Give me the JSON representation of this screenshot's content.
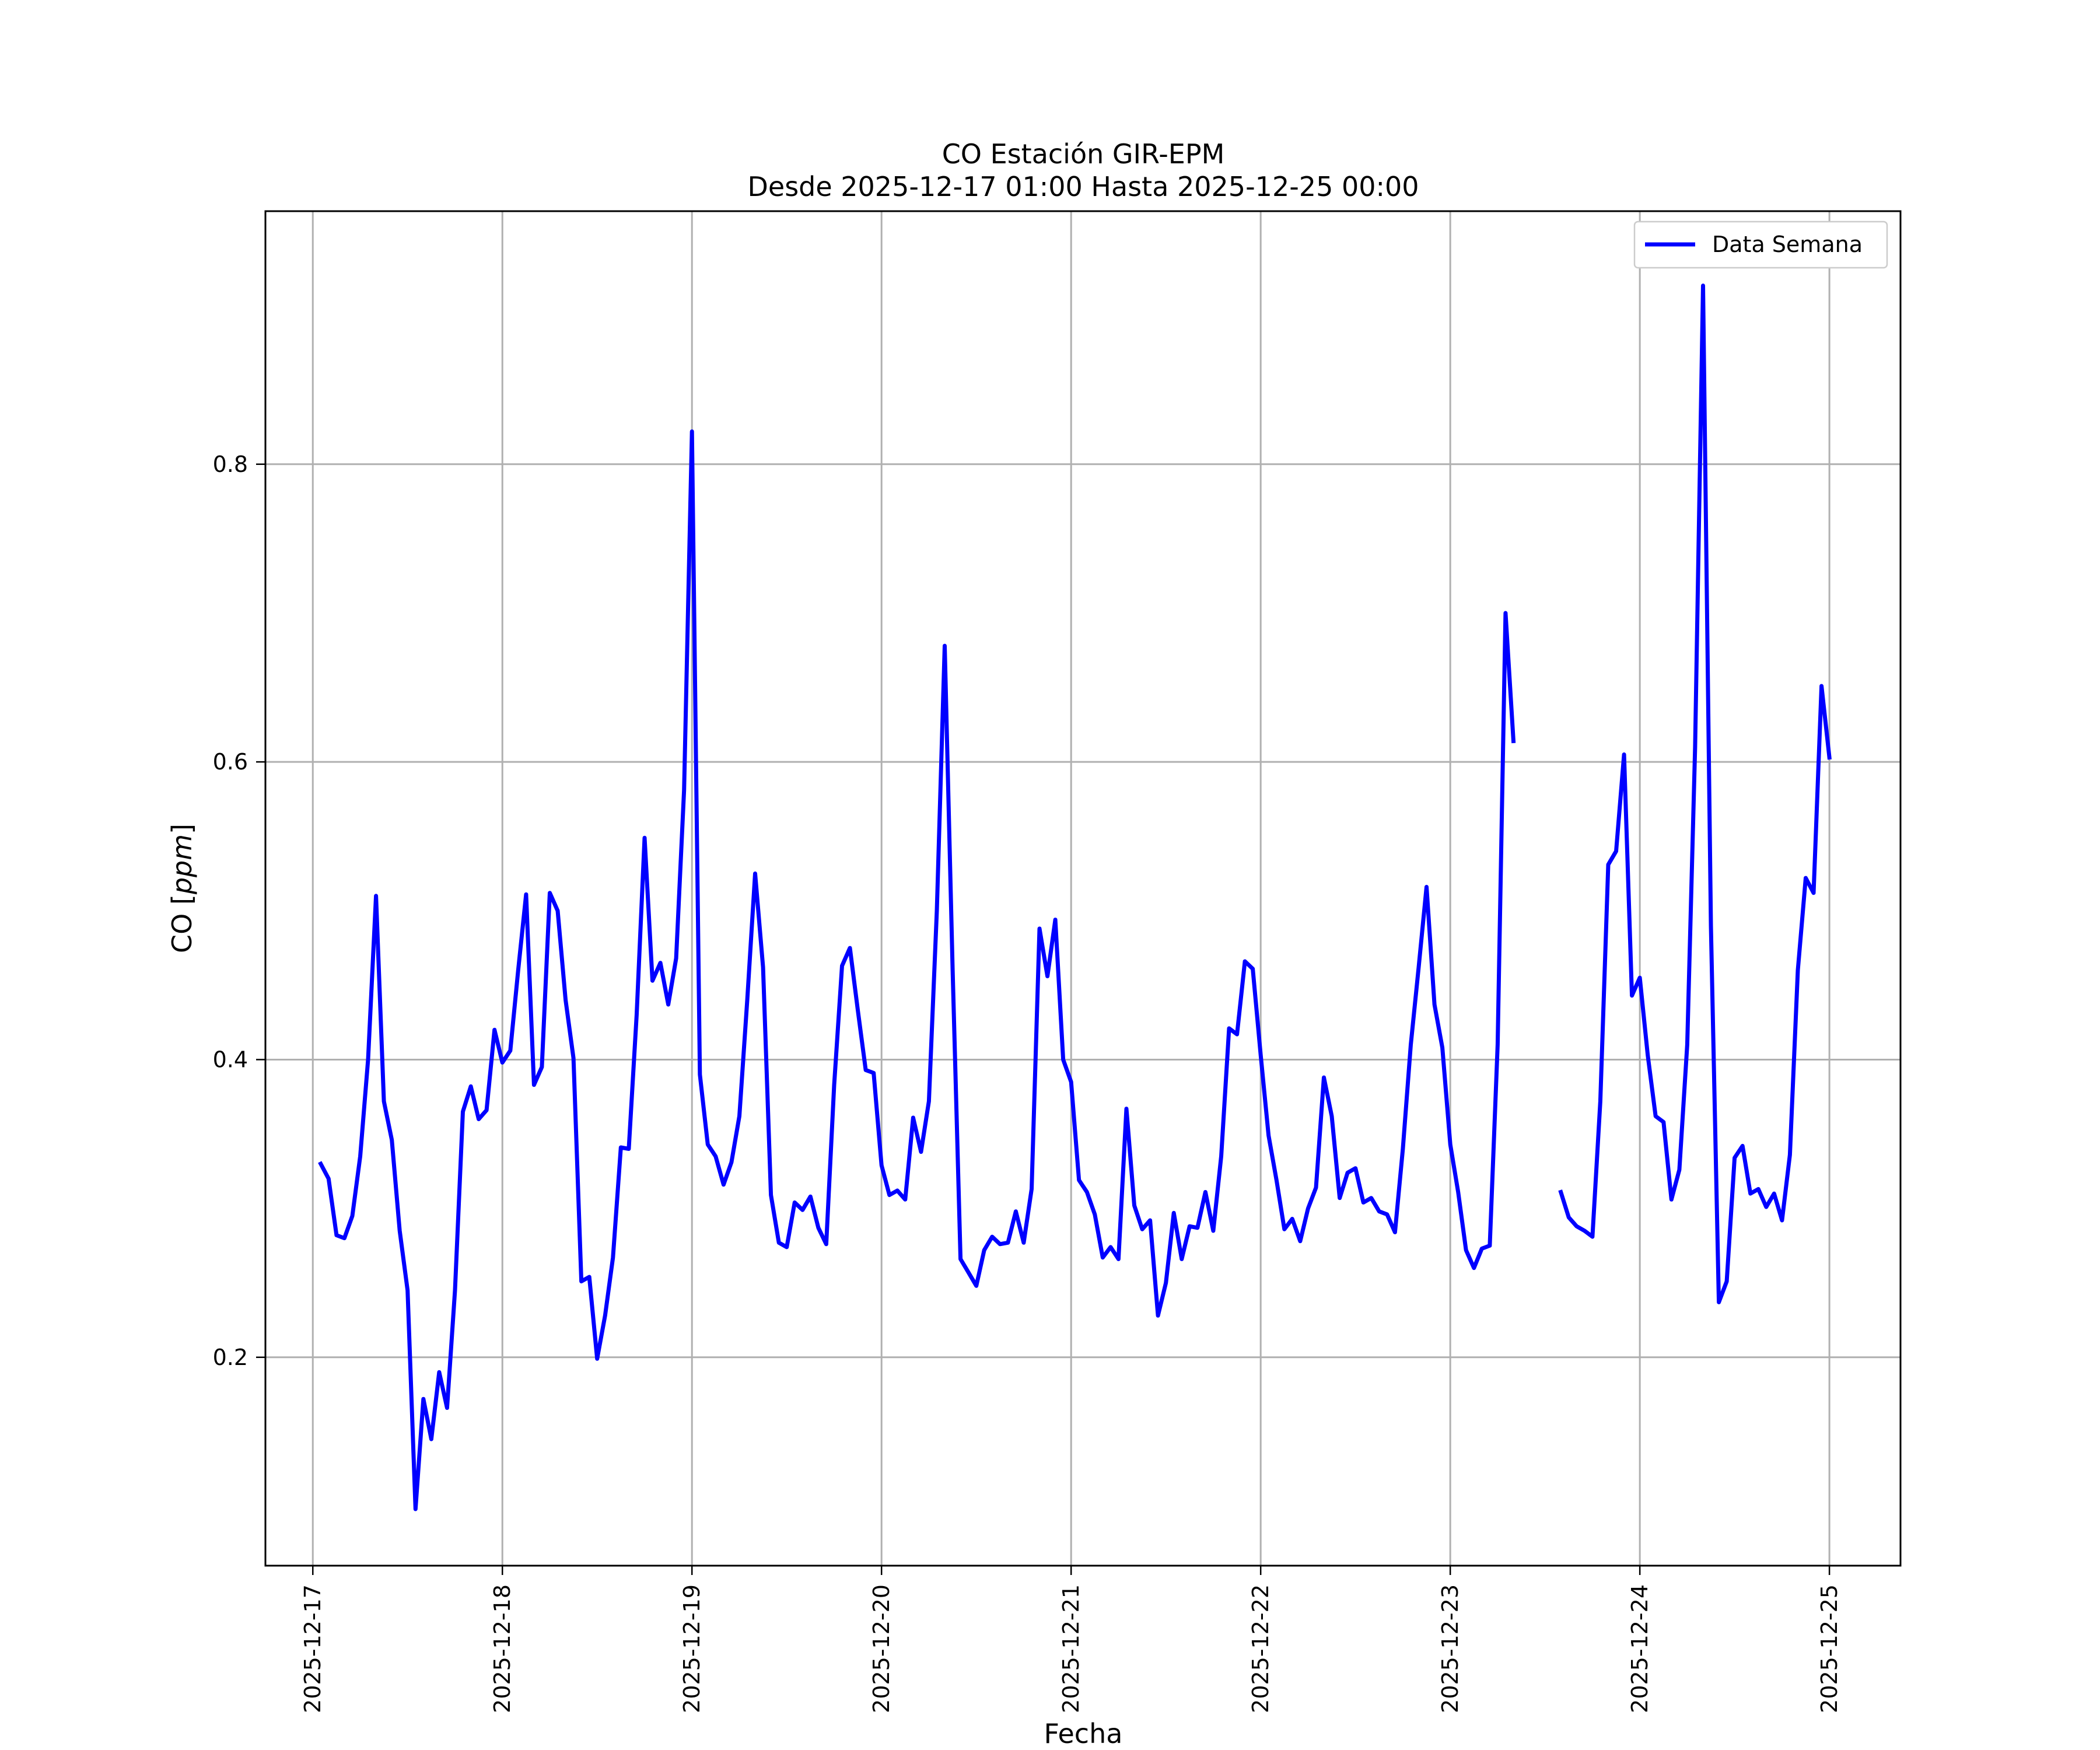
{
  "chart_data": {
    "type": "line",
    "title": "CO Estación GIR-EPM",
    "subtitle": "Desde 2025-12-17 01:00 Hasta 2025-12-25 00:00",
    "xlabel": "Fecha",
    "ylabel": "CO [ppm]",
    "xlim": [
      "2025-12-16 18:00",
      "2025-12-25 09:00"
    ],
    "ylim": [
      0.06,
      0.97
    ],
    "x_ticks": [
      "2025-12-17",
      "2025-12-18",
      "2025-12-19",
      "2025-12-20",
      "2025-12-21",
      "2025-12-22",
      "2025-12-23",
      "2025-12-24",
      "2025-12-25"
    ],
    "y_ticks": [
      "0.2",
      "0.4",
      "0.6",
      "0.8"
    ],
    "grid": true,
    "legend": {
      "position": "top-right",
      "entries": [
        "Data Semana"
      ]
    },
    "colors": {
      "series": "#0000ff",
      "grid": "#b0b0b0",
      "axes": "#000000"
    },
    "series": [
      {
        "name": "Data Semana",
        "points": [
          [
            "2025-12-17 01:00",
            0.33
          ],
          [
            "2025-12-17 02:00",
            0.32
          ],
          [
            "2025-12-17 03:00",
            0.282
          ],
          [
            "2025-12-17 04:00",
            0.28
          ],
          [
            "2025-12-17 05:00",
            0.295
          ],
          [
            "2025-12-17 06:00",
            0.335
          ],
          [
            "2025-12-17 07:00",
            0.4
          ],
          [
            "2025-12-17 08:00",
            0.51
          ],
          [
            "2025-12-17 09:00",
            0.372
          ],
          [
            "2025-12-17 10:00",
            0.346
          ],
          [
            "2025-12-17 11:00",
            0.285
          ],
          [
            "2025-12-17 12:00",
            0.245
          ],
          [
            "2025-12-17 13:00",
            0.098
          ],
          [
            "2025-12-17 14:00",
            0.172
          ],
          [
            "2025-12-17 15:00",
            0.145
          ],
          [
            "2025-12-17 16:00",
            0.19
          ],
          [
            "2025-12-17 17:00",
            0.166
          ],
          [
            "2025-12-17 18:00",
            0.245
          ],
          [
            "2025-12-17 19:00",
            0.365
          ],
          [
            "2025-12-17 20:00",
            0.382
          ],
          [
            "2025-12-17 21:00",
            0.36
          ],
          [
            "2025-12-17 22:00",
            0.366
          ],
          [
            "2025-12-17 23:00",
            0.42
          ],
          [
            "2025-12-18 00:00",
            0.398
          ],
          [
            "2025-12-18 01:00",
            0.406
          ],
          [
            "2025-12-18 02:00",
            0.46
          ],
          [
            "2025-12-18 03:00",
            0.511
          ],
          [
            "2025-12-18 04:00",
            0.383
          ],
          [
            "2025-12-18 05:00",
            0.395
          ],
          [
            "2025-12-18 06:00",
            0.512
          ],
          [
            "2025-12-18 07:00",
            0.5
          ],
          [
            "2025-12-18 08:00",
            0.44
          ],
          [
            "2025-12-18 09:00",
            0.401
          ],
          [
            "2025-12-18 10:00",
            0.251
          ],
          [
            "2025-12-18 11:00",
            0.254
          ],
          [
            "2025-12-18 12:00",
            0.199
          ],
          [
            "2025-12-18 13:00",
            0.228
          ],
          [
            "2025-12-18 14:00",
            0.267
          ],
          [
            "2025-12-18 15:00",
            0.341
          ],
          [
            "2025-12-18 16:00",
            0.34
          ],
          [
            "2025-12-18 17:00",
            0.43
          ],
          [
            "2025-12-18 18:00",
            0.549
          ],
          [
            "2025-12-18 19:00",
            0.453
          ],
          [
            "2025-12-18 20:00",
            0.465
          ],
          [
            "2025-12-18 21:00",
            0.437
          ],
          [
            "2025-12-18 22:00",
            0.468
          ],
          [
            "2025-12-18 23:00",
            0.581
          ],
          [
            "2025-12-19 00:00",
            0.822
          ],
          [
            "2025-12-19 01:00",
            0.39
          ],
          [
            "2025-12-19 02:00",
            0.343
          ],
          [
            "2025-12-19 03:00",
            0.335
          ],
          [
            "2025-12-19 04:00",
            0.316
          ],
          [
            "2025-12-19 05:00",
            0.331
          ],
          [
            "2025-12-19 06:00",
            0.362
          ],
          [
            "2025-12-19 07:00",
            0.44
          ],
          [
            "2025-12-19 08:00",
            0.525
          ],
          [
            "2025-12-19 09:00",
            0.462
          ],
          [
            "2025-12-19 10:00",
            0.309
          ],
          [
            "2025-12-19 11:00",
            0.277
          ],
          [
            "2025-12-19 12:00",
            0.274
          ],
          [
            "2025-12-19 13:00",
            0.304
          ],
          [
            "2025-12-19 14:00",
            0.299
          ],
          [
            "2025-12-19 15:00",
            0.308
          ],
          [
            "2025-12-19 16:00",
            0.287
          ],
          [
            "2025-12-19 17:00",
            0.276
          ],
          [
            "2025-12-19 18:00",
            0.383
          ],
          [
            "2025-12-19 19:00",
            0.463
          ],
          [
            "2025-12-19 20:00",
            0.475
          ],
          [
            "2025-12-19 21:00",
            0.433
          ],
          [
            "2025-12-19 22:00",
            0.393
          ],
          [
            "2025-12-19 23:00",
            0.391
          ],
          [
            "2025-12-20 00:00",
            0.329
          ],
          [
            "2025-12-20 01:00",
            0.309
          ],
          [
            "2025-12-20 02:00",
            0.312
          ],
          [
            "2025-12-20 03:00",
            0.306
          ],
          [
            "2025-12-20 04:00",
            0.361
          ],
          [
            "2025-12-20 05:00",
            0.338
          ],
          [
            "2025-12-20 06:00",
            0.372
          ],
          [
            "2025-12-20 07:00",
            0.5
          ],
          [
            "2025-12-20 08:00",
            0.678
          ],
          [
            "2025-12-20 09:00",
            0.46
          ],
          [
            "2025-12-20 10:00",
            0.266
          ],
          [
            "2025-12-20 11:00",
            0.257
          ],
          [
            "2025-12-20 12:00",
            0.248
          ],
          [
            "2025-12-20 13:00",
            0.272
          ],
          [
            "2025-12-20 14:00",
            0.281
          ],
          [
            "2025-12-20 15:00",
            0.276
          ],
          [
            "2025-12-20 16:00",
            0.277
          ],
          [
            "2025-12-20 17:00",
            0.298
          ],
          [
            "2025-12-20 18:00",
            0.277
          ],
          [
            "2025-12-20 19:00",
            0.313
          ],
          [
            "2025-12-20 20:00",
            0.488
          ],
          [
            "2025-12-20 21:00",
            0.456
          ],
          [
            "2025-12-20 22:00",
            0.494
          ],
          [
            "2025-12-20 23:00",
            0.4
          ],
          [
            "2025-12-21 00:00",
            0.385
          ],
          [
            "2025-12-21 01:00",
            0.319
          ],
          [
            "2025-12-21 02:00",
            0.311
          ],
          [
            "2025-12-21 03:00",
            0.296
          ],
          [
            "2025-12-21 04:00",
            0.267
          ],
          [
            "2025-12-21 05:00",
            0.274
          ],
          [
            "2025-12-21 06:00",
            0.266
          ],
          [
            "2025-12-21 07:00",
            0.367
          ],
          [
            "2025-12-21 08:00",
            0.302
          ],
          [
            "2025-12-21 09:00",
            0.286
          ],
          [
            "2025-12-21 10:00",
            0.292
          ],
          [
            "2025-12-21 11:00",
            0.228
          ],
          [
            "2025-12-21 12:00",
            0.25
          ],
          [
            "2025-12-21 13:00",
            0.297
          ],
          [
            "2025-12-21 14:00",
            0.266
          ],
          [
            "2025-12-21 15:00",
            0.288
          ],
          [
            "2025-12-21 16:00",
            0.287
          ],
          [
            "2025-12-21 17:00",
            0.311
          ],
          [
            "2025-12-21 18:00",
            0.285
          ],
          [
            "2025-12-21 19:00",
            0.335
          ],
          [
            "2025-12-21 20:00",
            0.421
          ],
          [
            "2025-12-21 21:00",
            0.417
          ],
          [
            "2025-12-21 22:00",
            0.466
          ],
          [
            "2025-12-21 23:00",
            0.461
          ],
          [
            "2025-12-22 00:00",
            0.403
          ],
          [
            "2025-12-22 01:00",
            0.349
          ],
          [
            "2025-12-22 02:00",
            0.319
          ],
          [
            "2025-12-22 03:00",
            0.286
          ],
          [
            "2025-12-22 04:00",
            0.293
          ],
          [
            "2025-12-22 05:00",
            0.278
          ],
          [
            "2025-12-22 06:00",
            0.3
          ],
          [
            "2025-12-22 07:00",
            0.314
          ],
          [
            "2025-12-22 08:00",
            0.388
          ],
          [
            "2025-12-22 09:00",
            0.362
          ],
          [
            "2025-12-22 10:00",
            0.307
          ],
          [
            "2025-12-22 11:00",
            0.324
          ],
          [
            "2025-12-22 12:00",
            0.327
          ],
          [
            "2025-12-22 13:00",
            0.304
          ],
          [
            "2025-12-22 14:00",
            0.307
          ],
          [
            "2025-12-22 15:00",
            0.298
          ],
          [
            "2025-12-22 16:00",
            0.296
          ],
          [
            "2025-12-22 17:00",
            0.284
          ],
          [
            "2025-12-22 18:00",
            0.34
          ],
          [
            "2025-12-22 19:00",
            0.41
          ],
          [
            "2025-12-22 20:00",
            0.462
          ],
          [
            "2025-12-22 21:00",
            0.516
          ],
          [
            "2025-12-22 22:00",
            0.437
          ],
          [
            "2025-12-22 23:00",
            0.408
          ],
          [
            "2025-12-23 00:00",
            0.343
          ],
          [
            "2025-12-23 01:00",
            0.311
          ],
          [
            "2025-12-23 02:00",
            0.272
          ],
          [
            "2025-12-23 03:00",
            0.26
          ],
          [
            "2025-12-23 04:00",
            0.273
          ],
          [
            "2025-12-23 05:00",
            0.275
          ],
          [
            "2025-12-23 06:00",
            0.41
          ],
          [
            "2025-12-23 07:00",
            0.7
          ],
          [
            "2025-12-23 08:00",
            0.614
          ],
          null,
          [
            "2025-12-23 14:00",
            0.311
          ],
          [
            "2025-12-23 15:00",
            0.294
          ],
          [
            "2025-12-23 16:00",
            0.288
          ],
          [
            "2025-12-23 17:00",
            0.285
          ],
          [
            "2025-12-23 18:00",
            0.281
          ],
          [
            "2025-12-23 19:00",
            0.372
          ],
          [
            "2025-12-23 20:00",
            0.531
          ],
          [
            "2025-12-23 21:00",
            0.54
          ],
          [
            "2025-12-23 22:00",
            0.605
          ],
          [
            "2025-12-23 23:00",
            0.443
          ],
          [
            "2025-12-24 00:00",
            0.455
          ],
          [
            "2025-12-24 01:00",
            0.403
          ],
          [
            "2025-12-24 02:00",
            0.362
          ],
          [
            "2025-12-24 03:00",
            0.358
          ],
          [
            "2025-12-24 04:00",
            0.306
          ],
          [
            "2025-12-24 05:00",
            0.326
          ],
          [
            "2025-12-24 06:00",
            0.41
          ],
          [
            "2025-12-24 07:00",
            0.61
          ],
          [
            "2025-12-24 08:00",
            0.92
          ],
          [
            "2025-12-24 09:00",
            0.49
          ],
          [
            "2025-12-24 10:00",
            0.237
          ],
          [
            "2025-12-24 11:00",
            0.251
          ],
          [
            "2025-12-24 12:00",
            0.334
          ],
          [
            "2025-12-24 13:00",
            0.342
          ],
          [
            "2025-12-24 14:00",
            0.31
          ],
          [
            "2025-12-24 15:00",
            0.313
          ],
          [
            "2025-12-24 16:00",
            0.301
          ],
          [
            "2025-12-24 17:00",
            0.31
          ],
          [
            "2025-12-24 18:00",
            0.292
          ],
          [
            "2025-12-24 19:00",
            0.336
          ],
          [
            "2025-12-24 20:00",
            0.46
          ],
          [
            "2025-12-24 21:00",
            0.522
          ],
          [
            "2025-12-24 22:00",
            0.512
          ],
          [
            "2025-12-24 23:00",
            0.651
          ],
          [
            "2025-12-25 00:00",
            0.603
          ]
        ]
      }
    ]
  }
}
